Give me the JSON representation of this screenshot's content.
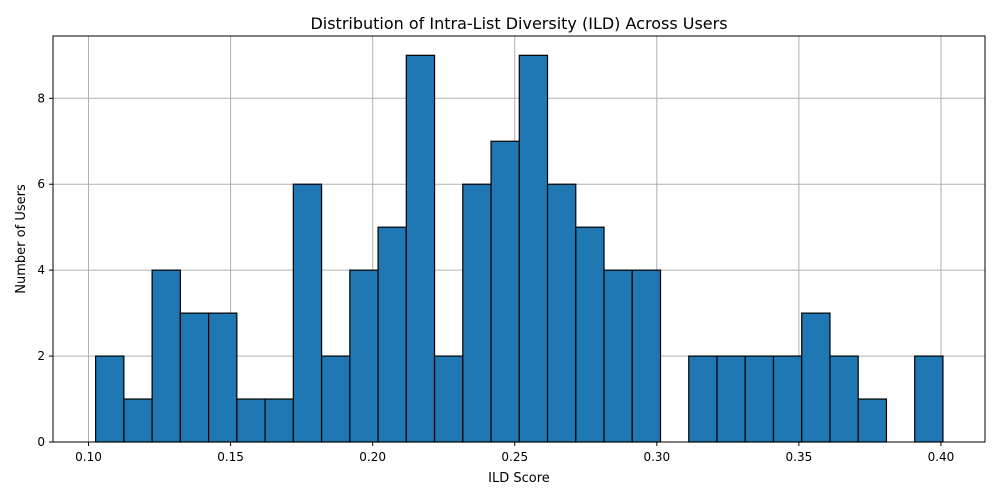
{
  "chart_data": {
    "type": "bar",
    "title": "Distribution of Intra-List Diversity (ILD) Across Users",
    "xlabel": "ILD Score",
    "ylabel": "Number of Users",
    "bar_color": "#1f77b4",
    "edge_color": "#000000",
    "grid": true,
    "xlim": [
      0.0875,
      0.4155
    ],
    "ylim": [
      0,
      9.45
    ],
    "x_ticks": [
      "0.10",
      "0.15",
      "0.20",
      "0.25",
      "0.30",
      "0.35",
      "0.40"
    ],
    "y_ticks": [
      "0",
      "2",
      "4",
      "6",
      "8"
    ],
    "bin_start": 0.1025,
    "bin_width": 0.00994,
    "counts": [
      2,
      1,
      4,
      3,
      3,
      1,
      1,
      6,
      2,
      4,
      5,
      9,
      2,
      6,
      7,
      9,
      6,
      5,
      4,
      4,
      0,
      2,
      2,
      2,
      2,
      3,
      2,
      1,
      0,
      2
    ]
  }
}
